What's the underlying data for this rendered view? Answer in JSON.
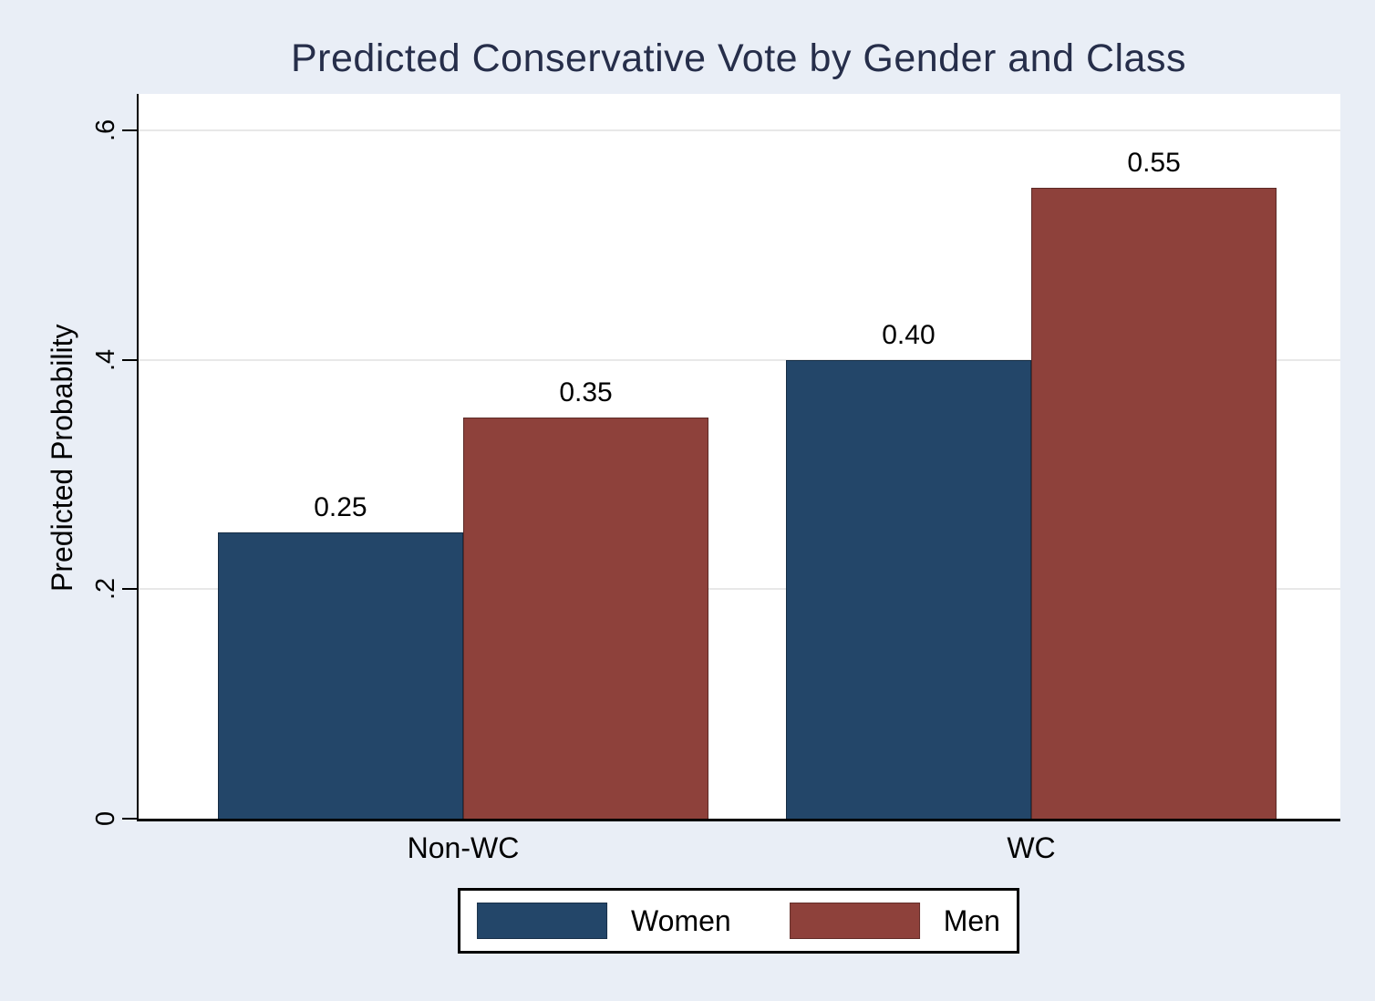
{
  "chart_data": {
    "type": "bar",
    "title": "Predicted Conservative Vote by Gender and Class",
    "ylabel": "Predicted Probability",
    "xlabel": "",
    "categories": [
      "Non-WC",
      "WC"
    ],
    "series": [
      {
        "name": "Women",
        "color": "#234669",
        "values": [
          0.25,
          0.4
        ],
        "labels": [
          "0.25",
          "0.40"
        ]
      },
      {
        "name": "Men",
        "color": "#8e413b",
        "values": [
          0.35,
          0.55
        ],
        "labels": [
          "0.35",
          "0.55"
        ]
      }
    ],
    "yticks": [
      0,
      0.2,
      0.4,
      0.6
    ],
    "ytick_labels": [
      "0",
      ".2",
      ".4",
      ".6"
    ],
    "ylim": [
      0,
      0.6
    ],
    "grid": true,
    "legend_position": "bottom",
    "layout": {
      "y_scale_max": 0.632,
      "bar_width_frac": 0.2042,
      "group_start_fracs": [
        0.0659,
        0.5386
      ]
    },
    "colors": {
      "background": "#e9eef6",
      "plot_background": "#ffffff",
      "gridline": "#e8e8e8",
      "axis": "#000000",
      "title_text": "#262e4a",
      "label_text": "#000000"
    }
  }
}
